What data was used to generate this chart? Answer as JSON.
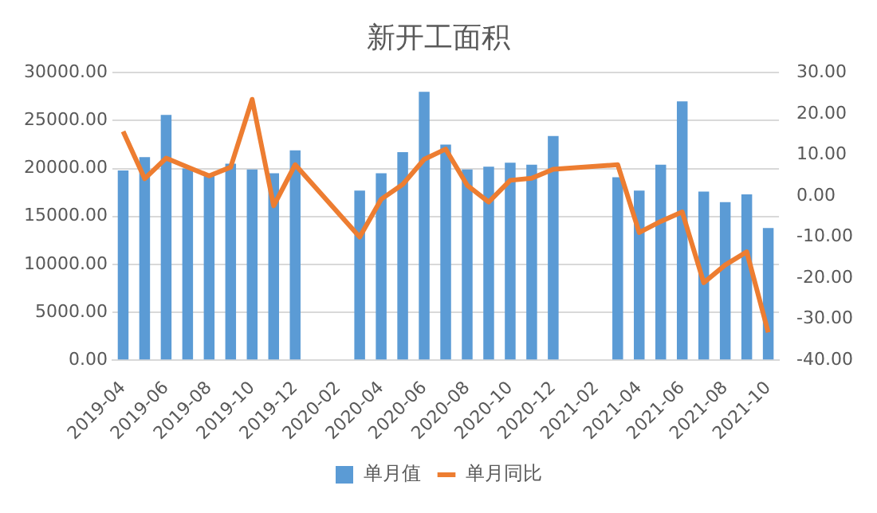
{
  "chart_data": {
    "type": "bar",
    "title": "新开工面积",
    "categories": [
      "2019-04",
      null,
      "2019-06",
      null,
      "2019-08",
      null,
      "2019-10",
      null,
      "2019-12",
      null,
      "2020-02",
      null,
      "2020-04",
      null,
      "2020-06",
      null,
      "2020-08",
      null,
      "2020-10",
      null,
      "2020-12",
      null,
      "2021-02",
      null,
      "2021-04",
      null,
      "2021-06",
      null,
      "2021-08",
      null,
      "2021-10"
    ],
    "series": [
      {
        "name": "单月值",
        "color": "#5b9bd5",
        "values": [
          19800,
          21200,
          25600,
          20000,
          19400,
          20500,
          19900,
          19500,
          21900,
          null,
          null,
          17700,
          19500,
          21700,
          28000,
          22500,
          19900,
          20200,
          20600,
          20400,
          23400,
          null,
          null,
          19100,
          17700,
          20400,
          27000,
          17600,
          16500,
          17300,
          13800
        ]
      },
      {
        "name": "单月同比",
        "type": "line",
        "axis": "y2",
        "color": "#ed7d31",
        "marker": "none",
        "line_style": "solid",
        "values": [
          15.7,
          4.2,
          9.2,
          7.0,
          4.9,
          7.0,
          23.5,
          -2.4,
          7.6,
          null,
          null,
          -10.0,
          -0.8,
          2.8,
          8.9,
          11.4,
          2.6,
          -1.5,
          3.8,
          4.3,
          6.5,
          null,
          null,
          7.6,
          -8.9,
          -6.2,
          -3.9,
          -21.1,
          -16.8,
          -13.6,
          -33.2
        ]
      }
    ],
    "ylim": [
      0,
      30000
    ],
    "yticks": [
      {
        "value": 0,
        "label": "0.00"
      },
      {
        "value": 5000,
        "label": "5000.00"
      },
      {
        "value": 10000,
        "label": "10000.00"
      },
      {
        "value": 15000,
        "label": "15000.00"
      },
      {
        "value": 20000,
        "label": "20000.00"
      },
      {
        "value": 25000,
        "label": "25000.00"
      },
      {
        "value": 30000,
        "label": "30000.00"
      }
    ],
    "y2lim": [
      -40,
      30
    ],
    "y2ticks": [
      {
        "value": -40,
        "label": "-40.00"
      },
      {
        "value": -30,
        "label": "-30.00"
      },
      {
        "value": -20,
        "label": "-20.00"
      },
      {
        "value": -10,
        "label": "-10.00"
      },
      {
        "value": 0,
        "label": "0.00"
      },
      {
        "value": 10,
        "label": "10.00"
      },
      {
        "value": 20,
        "label": "20.00"
      },
      {
        "value": 30,
        "label": "30.00"
      }
    ],
    "grid": "y",
    "legend": "bottom"
  }
}
